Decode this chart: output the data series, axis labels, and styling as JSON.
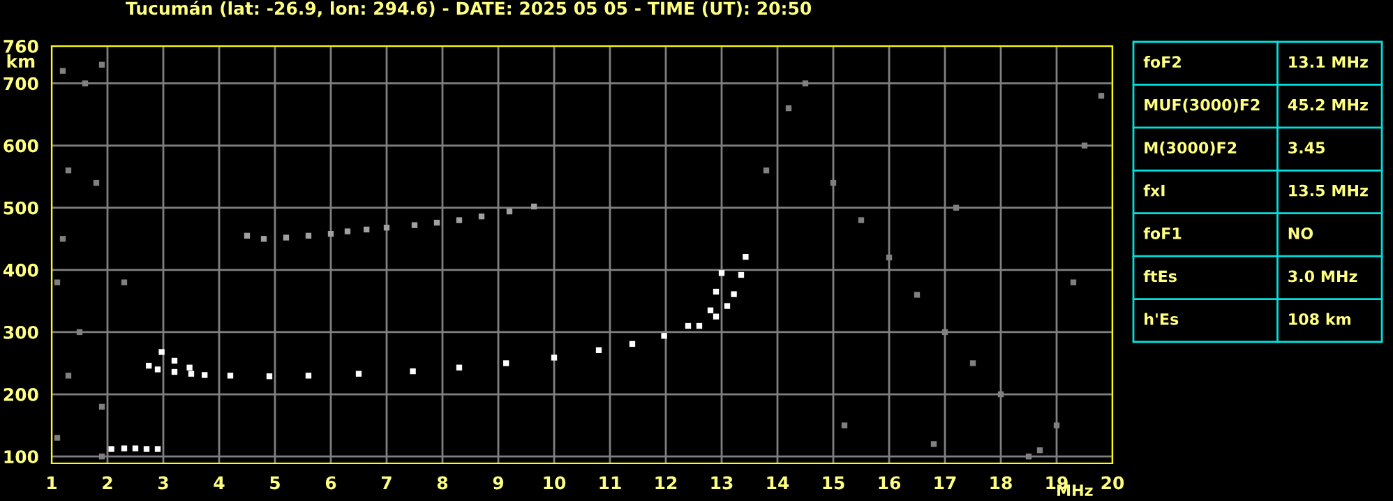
{
  "chart_data": [
    {
      "type": "scatter",
      "title": "Tucumán (lat: -26.9, lon: 294.6) - DATE: 2025 05 05 - TIME (UT): 20:50",
      "xlabel": "MHz",
      "ylabel": "km",
      "xlim": [
        1,
        20
      ],
      "xticks": [
        1,
        2,
        3,
        4,
        5,
        6,
        7,
        8,
        9,
        10,
        11,
        12,
        13,
        14,
        15,
        16,
        17,
        18,
        19,
        20
      ],
      "ylim": [
        89,
        760
      ],
      "yticks": [
        100,
        200,
        300,
        400,
        500,
        600,
        700,
        760
      ],
      "grid": true,
      "marker": "square",
      "series": [
        {
          "color": "#ffffff",
          "x": [
            2.74,
            2.9,
            3.2,
            3.5,
            3.74,
            4.2,
            4.9,
            5.6,
            6.5,
            7.47,
            8.3,
            9.14,
            10.0,
            10.8,
            11.4,
            11.97,
            12.4,
            12.8,
            12.9,
            13.0
          ],
          "values": [
            246,
            240,
            236,
            233,
            231,
            230,
            229,
            230,
            233,
            237,
            243,
            250,
            259,
            271,
            281,
            294,
            310,
            335,
            365,
            395
          ]
        },
        {
          "color": "#ffffff",
          "x": [
            2.97,
            3.2,
            3.47,
            12.6,
            12.9,
            13.1,
            13.22,
            13.35,
            13.43
          ],
          "values": [
            268,
            254,
            243,
            310,
            325,
            342,
            361,
            392,
            421
          ]
        },
        {
          "color": "#ffffff",
          "x": [
            2.07,
            2.3,
            2.5,
            2.7,
            2.9
          ],
          "values": [
            112,
            113,
            113,
            112,
            112
          ]
        },
        {
          "color": "#a0a0a0",
          "x": [
            4.5,
            4.8,
            5.2,
            5.6,
            6.0,
            6.3,
            6.64,
            7.0,
            7.5,
            7.9,
            8.3,
            8.7,
            9.2,
            9.64
          ],
          "values": [
            455,
            450,
            452,
            455,
            458,
            462,
            465,
            468,
            472,
            476,
            480,
            486,
            494,
            502
          ]
        },
        {
          "color": "#808080",
          "x": [
            1.2,
            1.6,
            1.9,
            1.3,
            1.8,
            1.2,
            1.1,
            1.5,
            1.3,
            1.9,
            1.1,
            1.9,
            2.3,
            14.5,
            14.2,
            15.0,
            15.5,
            16.0,
            16.5,
            17.0,
            17.5,
            18.0,
            18.7,
            19.0,
            19.5,
            19.8,
            15.2,
            16.8,
            13.8,
            18.5,
            17.2,
            19.3
          ],
          "values": [
            720,
            700,
            730,
            560,
            540,
            450,
            380,
            300,
            230,
            180,
            130,
            100,
            380,
            700,
            660,
            540,
            480,
            420,
            360,
            300,
            250,
            200,
            110,
            150,
            600,
            680,
            150,
            120,
            560,
            100,
            500,
            380
          ]
        }
      ]
    },
    {
      "type": "other",
      "annotations": [
        "foF2",
        "13.1 MHz",
        "MUF(3000)F2",
        "45.2 MHz",
        "M(3000)F2",
        "3.45",
        "fxI",
        "13.5 MHz",
        "foF1",
        "NO",
        "ftEs",
        "3.0 MHz",
        "h'Es",
        "108 km"
      ]
    }
  ]
}
